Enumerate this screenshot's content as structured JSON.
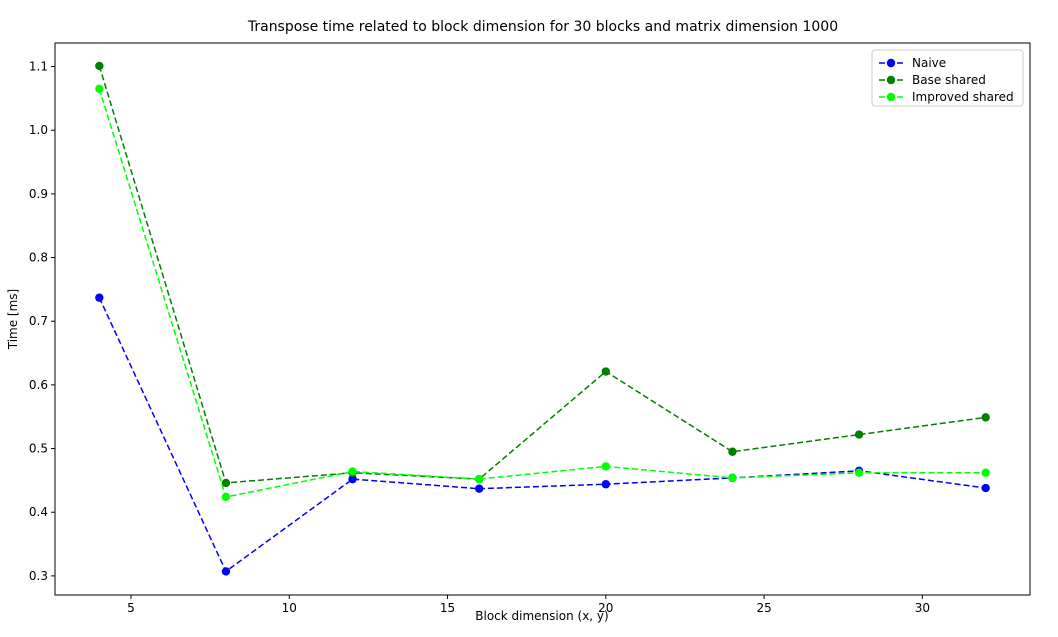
{
  "chart_data": {
    "type": "line",
    "title": "Transpose time related to block dimension for 30 blocks and matrix dimension 1000",
    "xlabel": "Block dimension (x, y)",
    "ylabel": "Time [ms]",
    "x": [
      4,
      8,
      12,
      16,
      20,
      24,
      28,
      32
    ],
    "xlim": [
      2.6,
      33.4
    ],
    "ylim": [
      0.27,
      1.137
    ],
    "xticks": [
      5,
      10,
      15,
      20,
      25,
      30
    ],
    "yticks": [
      0.3,
      0.4,
      0.5,
      0.6,
      0.7,
      0.8,
      0.9,
      1.0,
      1.1
    ],
    "xtick_labels": [
      "5",
      "10",
      "15",
      "20",
      "25",
      "30"
    ],
    "ytick_labels": [
      "0.3",
      "0.4",
      "0.5",
      "0.6",
      "0.7",
      "0.8",
      "0.9",
      "1.0",
      "1.1"
    ],
    "grid": false,
    "legend_position": "top-right",
    "series": [
      {
        "name": "Naive",
        "color": "#0000ff",
        "values": [
          0.737,
          0.307,
          0.452,
          0.437,
          0.444,
          0.454,
          0.465,
          0.438
        ]
      },
      {
        "name": "Base shared",
        "color": "#008000",
        "values": [
          1.101,
          0.446,
          0.462,
          0.452,
          0.621,
          0.495,
          0.522,
          0.549
        ]
      },
      {
        "name": "Improved shared",
        "color": "#00ff00",
        "values": [
          1.065,
          0.424,
          0.464,
          0.452,
          0.472,
          0.454,
          0.462,
          0.462
        ]
      }
    ]
  }
}
